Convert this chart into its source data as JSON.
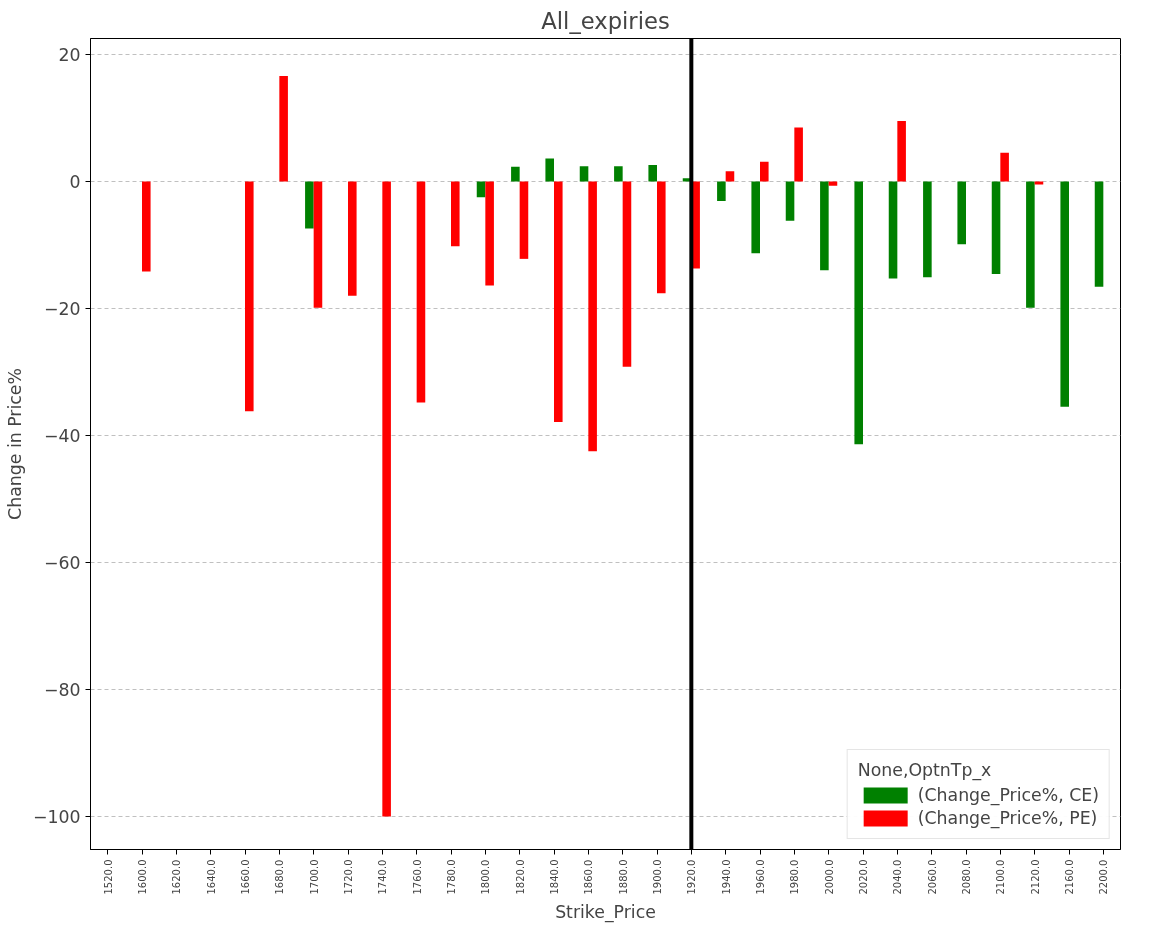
{
  "chart_data": {
    "type": "bar",
    "title": "All_expiries",
    "xlabel": "Strike_Price",
    "ylabel": "Change in Price%",
    "legend_title": "None,OptnTp_x",
    "categories": [
      "1520.0",
      "1600.0",
      "1620.0",
      "1640.0",
      "1660.0",
      "1680.0",
      "1700.0",
      "1720.0",
      "1740.0",
      "1760.0",
      "1780.0",
      "1800.0",
      "1820.0",
      "1840.0",
      "1860.0",
      "1880.0",
      "1900.0",
      "1920.0",
      "1940.0",
      "1960.0",
      "1980.0",
      "2000.0",
      "2020.0",
      "2040.0",
      "2060.0",
      "2080.0",
      "2100.0",
      "2120.0",
      "2160.0",
      "2200.0"
    ],
    "series": [
      {
        "name": "(Change_Price%, CE)",
        "color": "#008000",
        "values": [
          null,
          null,
          null,
          null,
          null,
          null,
          -7.4,
          null,
          null,
          null,
          null,
          -2.5,
          2.3,
          3.6,
          2.4,
          2.4,
          2.6,
          0.5,
          -3.1,
          -11.3,
          -6.2,
          -14.0,
          -41.4,
          -15.3,
          -15.1,
          -9.9,
          -14.6,
          -19.9,
          -35.5,
          -16.6
        ]
      },
      {
        "name": "(Change_Price%, PE)",
        "color": "#ff0000",
        "values": [
          null,
          -14.2,
          null,
          null,
          -36.2,
          16.6,
          -19.9,
          -18.0,
          -100,
          -34.8,
          -10.2,
          -16.4,
          -12.2,
          -37.9,
          -42.5,
          -29.2,
          -17.6,
          -13.7,
          1.6,
          3.1,
          8.5,
          -0.7,
          null,
          9.5,
          null,
          null,
          4.5,
          -0.5,
          null,
          null
        ]
      }
    ],
    "ylim": [
      -105.2,
      22.5
    ],
    "yticks": [
      {
        "value": -100,
        "label": "−100"
      },
      {
        "value": -80,
        "label": "−80"
      },
      {
        "value": -60,
        "label": "−60"
      },
      {
        "value": -40,
        "label": "−40"
      },
      {
        "value": -20,
        "label": "−20"
      },
      0,
      20
    ],
    "ref_lines": [
      {
        "axis": "x",
        "value": "1920.0",
        "color": "#000000"
      }
    ],
    "grid": "y",
    "legend": "bottom right"
  }
}
